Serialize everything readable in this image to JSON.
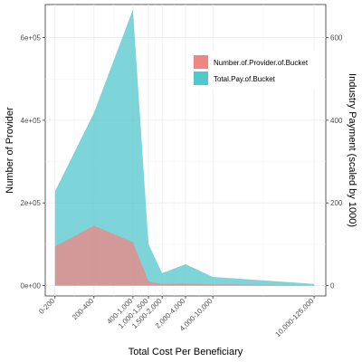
{
  "chart_data": {
    "type": "area",
    "xlabel": "Total Cost Per Beneficiary",
    "ylabel_left": "Number of Provider",
    "ylabel_right": "Industry Payment (scaled by 1000)",
    "categories": [
      "0-200",
      "200-400",
      "400-1,000",
      "1,000-1,500",
      "1,500-2,000",
      "2,000-4,000",
      "4,000-10,000",
      "10,000-125,000"
    ],
    "x_positions": [
      0,
      1,
      2,
      2.4,
      2.75,
      3.35,
      4.05,
      6.65
    ],
    "x_range": [
      -0.25,
      6.95
    ],
    "left_axis": {
      "range": [
        -25000,
        680000
      ],
      "ticks": [
        0,
        200000,
        400000,
        600000
      ],
      "tick_labels": [
        "0e+00",
        "2e+05",
        "4e+05",
        "6e+05"
      ]
    },
    "right_axis": {
      "ticks": [
        0,
        200,
        400,
        600
      ],
      "tick_labels": [
        "0",
        "200",
        "400",
        "600"
      ],
      "scale": 1000
    },
    "series": [
      {
        "name": "Total.Pay.of.Bucket",
        "color": "#5ccbcf",
        "values": [
          228000,
          418000,
          668000,
          100000,
          30000,
          52000,
          21000,
          4000
        ]
      },
      {
        "name": "Number.of.Provider.of.Bucket",
        "color": "#e88a87",
        "values": [
          95000,
          145000,
          105000,
          10000,
          4000,
          5000,
          3000,
          1000
        ]
      }
    ],
    "legend": {
      "position": "top-right-inside",
      "items": [
        "Number.of.Provider.of.Bucket",
        "Total.Pay.of.Bucket"
      ]
    },
    "grid": true
  }
}
